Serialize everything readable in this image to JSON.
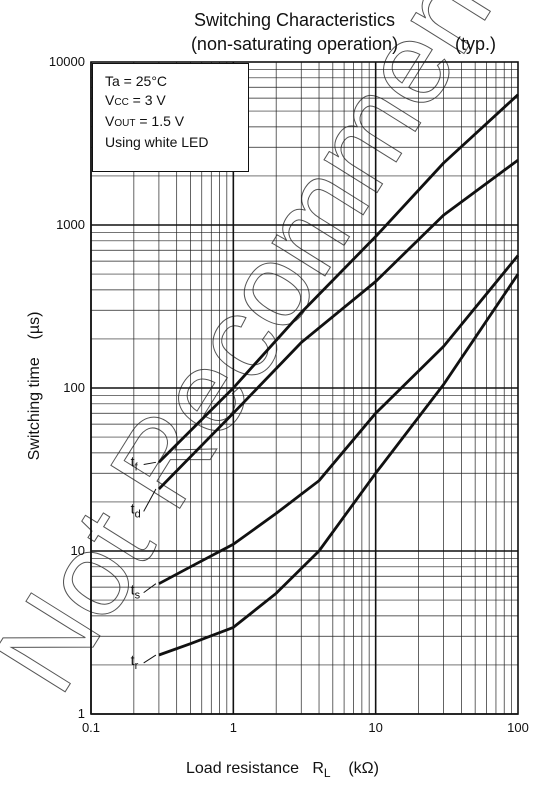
{
  "chart_data": {
    "type": "line",
    "title": "Switching Characteristics",
    "subtitle": "(non-saturating operation)",
    "note": "(typ.)",
    "xlabel": "Load resistance",
    "xlabel_symbol": "R",
    "xlabel_symbol_sub": "L",
    "xlabel_unit": "(kΩ)",
    "ylabel": "Switching time    (µs)",
    "x_scale": "log",
    "y_scale": "log",
    "xlim": [
      0.1,
      100
    ],
    "ylim": [
      1,
      10000
    ],
    "x_ticks": [
      "0.1",
      "1",
      "10",
      "100"
    ],
    "y_ticks": [
      "1",
      "10",
      "100",
      "1000",
      "10000"
    ],
    "grid": true,
    "conditions": {
      "line1_prefix": "Ta = 25°C",
      "line2_prefix": "V",
      "line2_sub": "CC",
      "line2_rest": " = 3 V",
      "line3_prefix": "V",
      "line3_sub": "OUT",
      "line3_rest": " = 1.5 V",
      "line4": "Using white LED"
    },
    "series": [
      {
        "name": "t",
        "sub": "f",
        "x": [
          0.3,
          1,
          3,
          10,
          30,
          100
        ],
        "y": [
          35,
          100,
          290,
          850,
          2400,
          6300
        ]
      },
      {
        "name": "t",
        "sub": "d",
        "x": [
          0.3,
          1,
          3,
          10,
          30,
          100
        ],
        "y": [
          24,
          70,
          190,
          450,
          1150,
          2500
        ]
      },
      {
        "name": "t",
        "sub": "s",
        "x": [
          0.3,
          0.5,
          1,
          2,
          4,
          10,
          30,
          100
        ],
        "y": [
          6.3,
          8,
          11,
          17,
          27,
          70,
          180,
          650
        ]
      },
      {
        "name": "t",
        "sub": "r",
        "x": [
          0.3,
          0.5,
          1,
          2,
          4,
          10,
          30,
          100
        ],
        "y": [
          2.3,
          2.7,
          3.4,
          5.5,
          10,
          30,
          105,
          500
        ]
      }
    ],
    "watermark": "Not Recommended"
  }
}
